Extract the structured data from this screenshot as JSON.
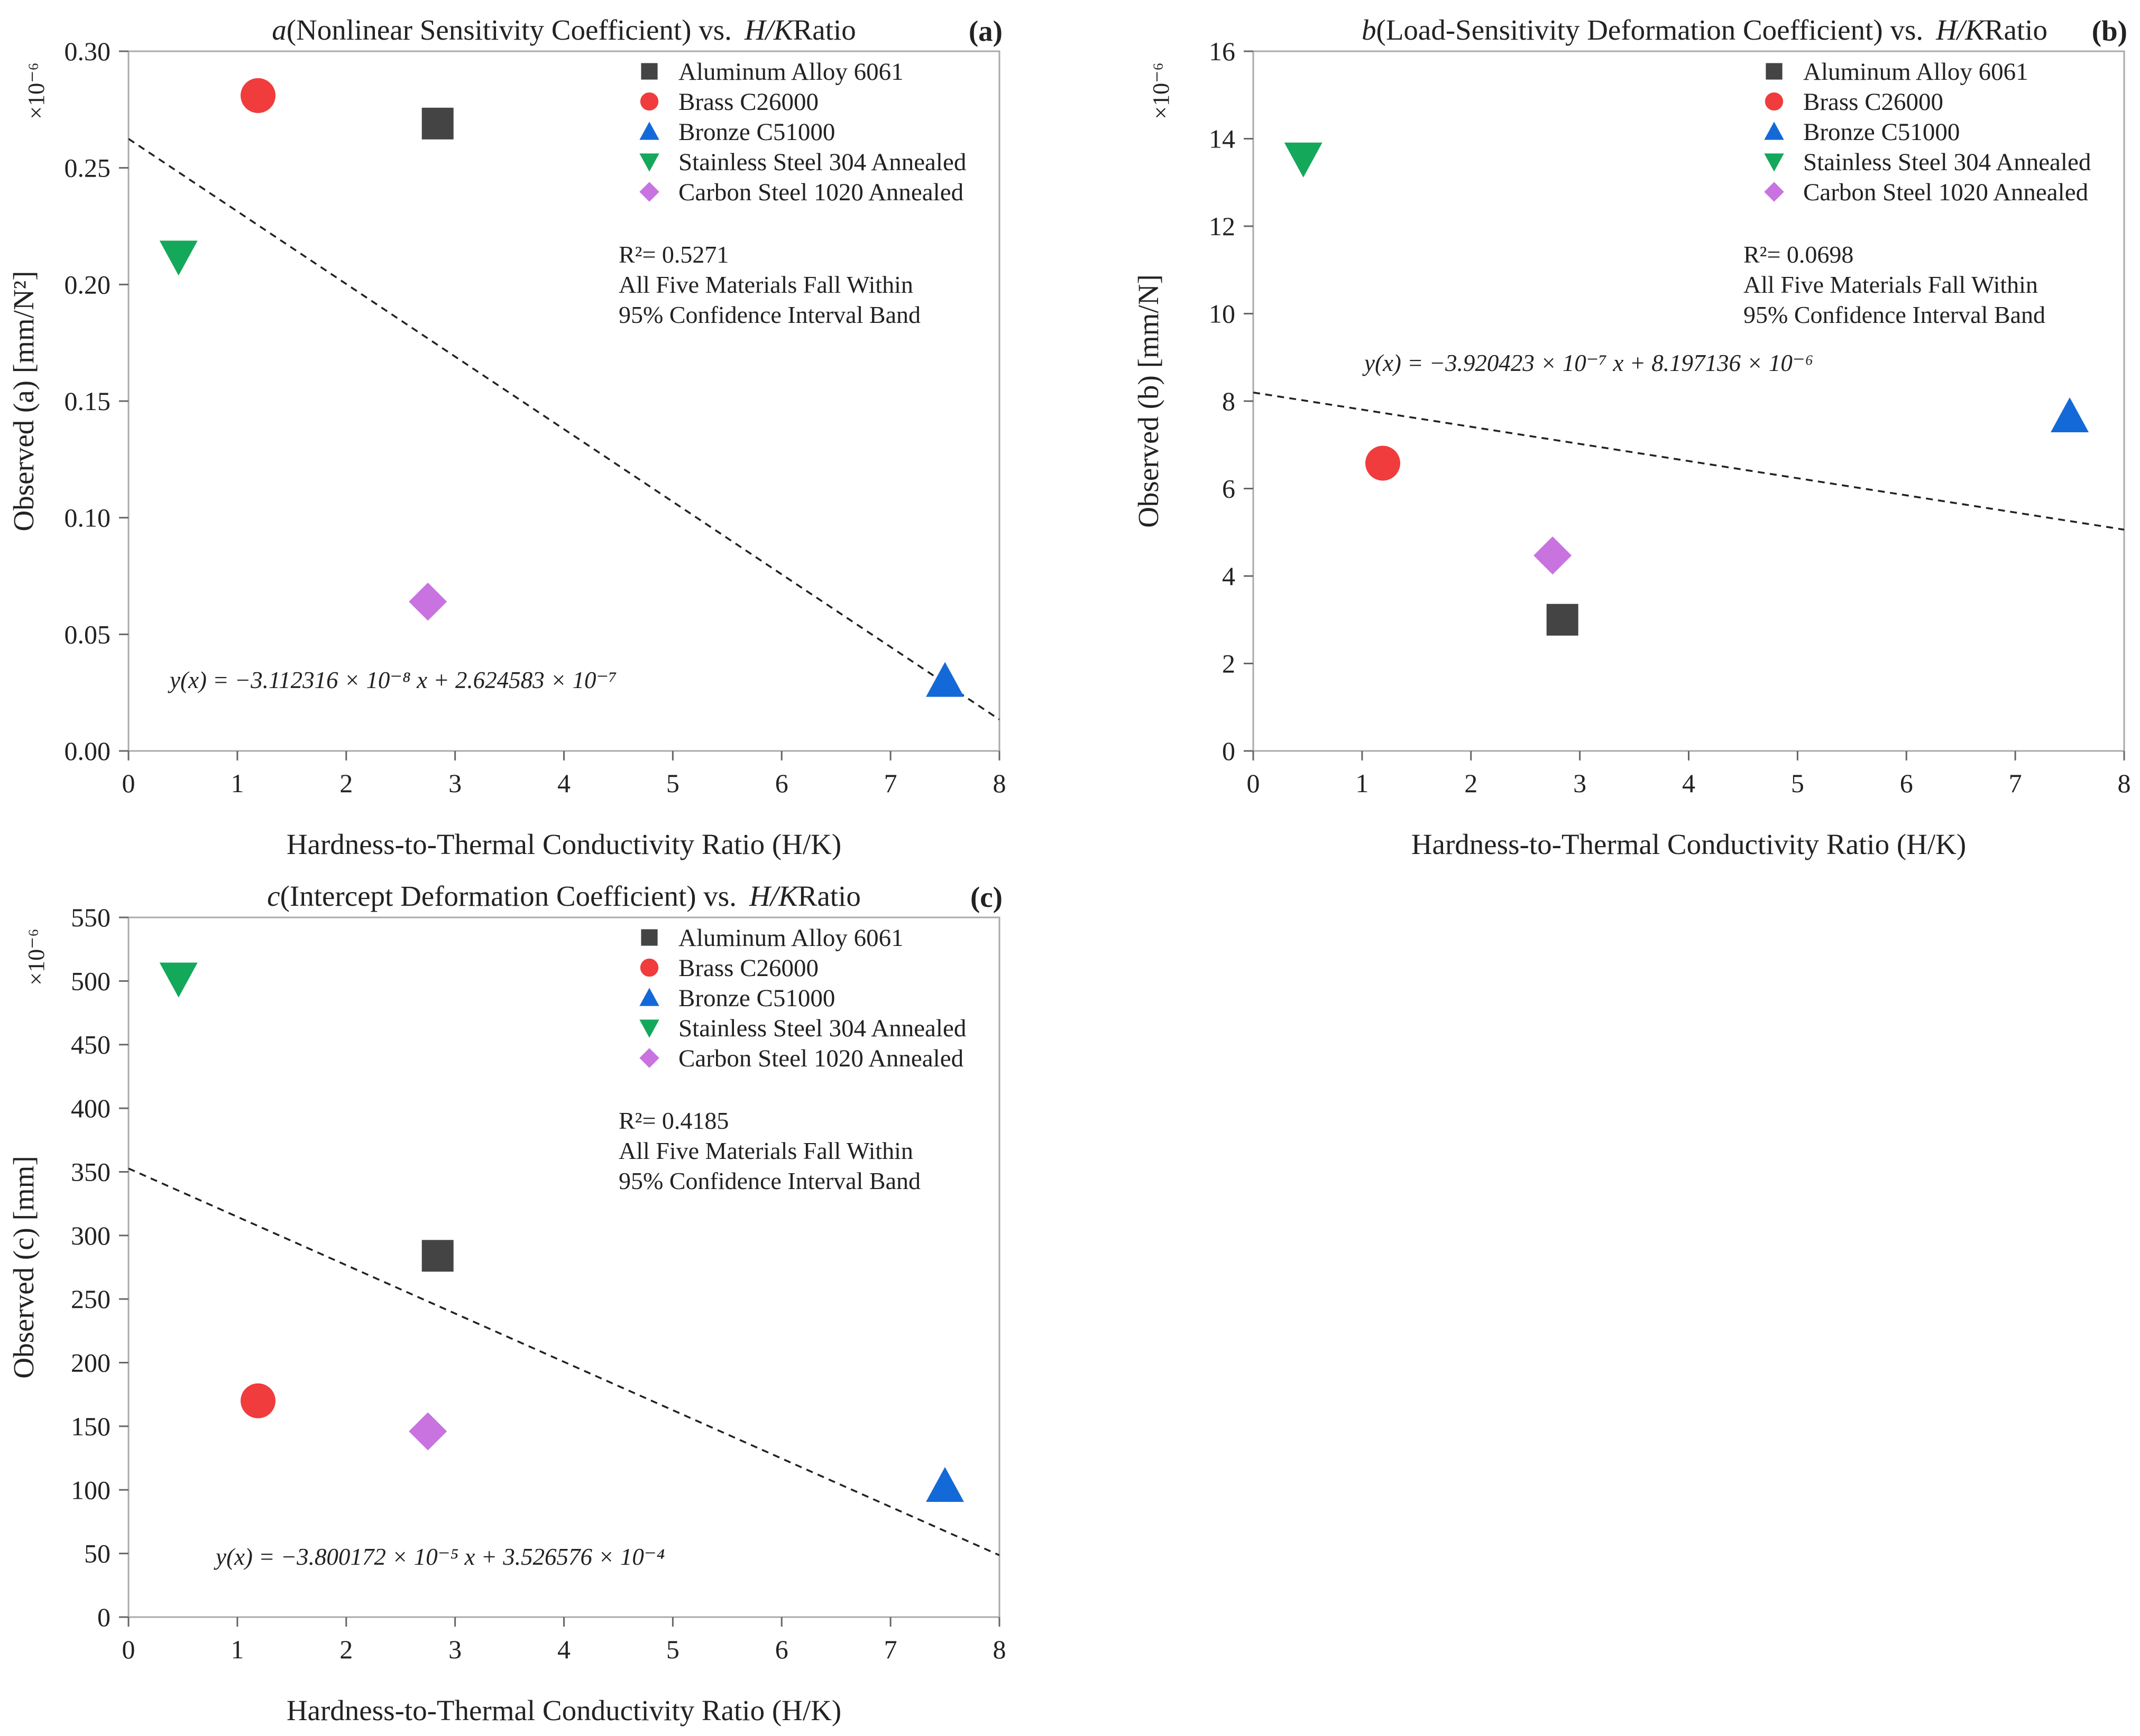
{
  "chart_data": [
    {
      "type": "scatter",
      "panel": "(a)",
      "title_var": "a",
      "title_rest": "(Nonlinear Sensitivity Coefficient) vs.",
      "title_ratio": "H/K",
      "title_end": "Ratio",
      "ylabel": "Observed (a) [mm/N²]",
      "scale": "×10⁻⁶",
      "xlabel": "Hardness-to-Thermal Conductivity Ratio (H/K)",
      "xlim": [
        0,
        8
      ],
      "ylim": [
        0,
        0.3
      ],
      "xticks": [
        "0",
        "1",
        "2",
        "3",
        "4",
        "5",
        "6",
        "7",
        "8"
      ],
      "yticks": [
        "0.00",
        "0.05",
        "0.10",
        "0.15",
        "0.20",
        "0.25",
        "0.30"
      ],
      "series": [
        {
          "name": "Aluminum Alloy 6061",
          "marker": "square",
          "color": "#444444",
          "x": 2.84,
          "y": 0.269
        },
        {
          "name": "Brass C26000",
          "marker": "circle",
          "color": "#f03c3c",
          "x": 1.19,
          "y": 0.281
        },
        {
          "name": "Bronze C51000",
          "marker": "triangle-up",
          "color": "#1469d8",
          "x": 7.5,
          "y": 0.03
        },
        {
          "name": "Stainless Steel 304 Annealed",
          "marker": "triangle-down",
          "color": "#14a85a",
          "x": 0.46,
          "y": 0.212
        },
        {
          "name": "Carbon Steel 1020 Annealed",
          "marker": "diamond",
          "color": "#c873e0",
          "x": 2.75,
          "y": 0.064
        }
      ],
      "fit": {
        "slope": -0.03112316,
        "intercept": 0.2624583
      },
      "r2": "R²= 0.5271",
      "note1": "All Five Materials Fall Within",
      "note2": "95% Confidence Interval Band",
      "equation": "y(x) = −3.112316 × 10⁻⁸ x + 2.624583 × 10⁻⁷"
    },
    {
      "type": "scatter",
      "panel": "(b)",
      "title_var": "b",
      "title_rest": "(Load-Sensitivity Deformation Coefficient) vs.",
      "title_ratio": "H/K",
      "title_end": "Ratio",
      "ylabel": "Observed (b) [mm/N]",
      "scale": "×10⁻⁶",
      "xlabel": "Hardness-to-Thermal Conductivity Ratio (H/K)",
      "xlim": [
        0,
        8
      ],
      "ylim": [
        0,
        16
      ],
      "xticks": [
        "0",
        "1",
        "2",
        "3",
        "4",
        "5",
        "6",
        "7",
        "8"
      ],
      "yticks": [
        "0",
        "2",
        "4",
        "6",
        "8",
        "10",
        "12",
        "14",
        "16"
      ],
      "series": [
        {
          "name": "Aluminum Alloy 6061",
          "marker": "square",
          "color": "#444444",
          "x": 2.84,
          "y": 3.0
        },
        {
          "name": "Brass C26000",
          "marker": "circle",
          "color": "#f03c3c",
          "x": 1.19,
          "y": 6.58
        },
        {
          "name": "Bronze C51000",
          "marker": "triangle-up",
          "color": "#1469d8",
          "x": 7.5,
          "y": 7.65
        },
        {
          "name": "Stainless Steel 304 Annealed",
          "marker": "triangle-down",
          "color": "#14a85a",
          "x": 0.46,
          "y": 13.55
        },
        {
          "name": "Carbon Steel 1020 Annealed",
          "marker": "diamond",
          "color": "#c873e0",
          "x": 2.75,
          "y": 4.47
        }
      ],
      "fit": {
        "slope": -0.3920423,
        "intercept": 8.197136
      },
      "r2": "R²= 0.0698",
      "note1": "All Five Materials Fall Within",
      "note2": "95% Confidence Interval Band",
      "equation": "y(x) = −3.920423 × 10⁻⁷ x + 8.197136 × 10⁻⁶"
    },
    {
      "type": "scatter",
      "panel": "(c)",
      "title_var": "c",
      "title_rest": "(Intercept Deformation Coefficient) vs.",
      "title_ratio": "H/K",
      "title_end": "Ratio",
      "ylabel": "Observed (c) [mm]",
      "scale": "×10⁻⁶",
      "xlabel": "Hardness-to-Thermal Conductivity Ratio (H/K)",
      "xlim": [
        0,
        8
      ],
      "ylim": [
        0,
        550
      ],
      "xticks": [
        "0",
        "1",
        "2",
        "3",
        "4",
        "5",
        "6",
        "7",
        "8"
      ],
      "yticks": [
        "0",
        "50",
        "100",
        "150",
        "200",
        "250",
        "300",
        "350",
        "400",
        "450",
        "500",
        "550"
      ],
      "series": [
        {
          "name": "Aluminum Alloy 6061",
          "marker": "square",
          "color": "#444444",
          "x": 2.84,
          "y": 284
        },
        {
          "name": "Brass C26000",
          "marker": "circle",
          "color": "#f03c3c",
          "x": 1.19,
          "y": 170
        },
        {
          "name": "Bronze C51000",
          "marker": "triangle-up",
          "color": "#1469d8",
          "x": 7.5,
          "y": 103
        },
        {
          "name": "Stainless Steel 304 Annealed",
          "marker": "triangle-down",
          "color": "#14a85a",
          "x": 0.46,
          "y": 502
        },
        {
          "name": "Carbon Steel 1020 Annealed",
          "marker": "diamond",
          "color": "#c873e0",
          "x": 2.75,
          "y": 146
        }
      ],
      "fit": {
        "slope": -38.00172,
        "intercept": 352.6576
      },
      "r2": "R²= 0.4185",
      "note1": "All Five Materials Fall Within",
      "note2": "95% Confidence Interval Band",
      "equation": "y(x) = −3.800172 × 10⁻⁵ x + 3.526576 × 10⁻⁴"
    }
  ]
}
